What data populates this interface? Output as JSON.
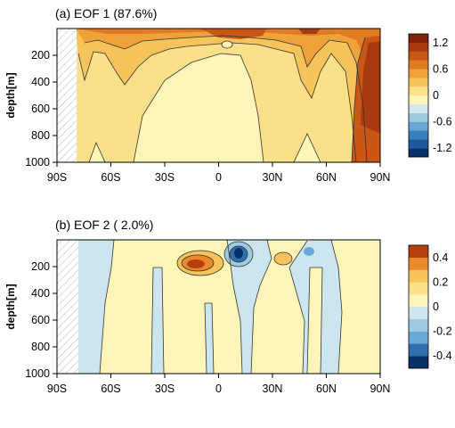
{
  "chart_data": [
    {
      "type": "heatmap",
      "title": "(a) EOF 1 (87.6%)",
      "ylabel": "depth[m]",
      "x_ticks": [
        "90S",
        "60S",
        "30S",
        "0",
        "30N",
        "60N",
        "90N"
      ],
      "x_values": [
        -90,
        -60,
        -30,
        0,
        30,
        60,
        90
      ],
      "y_ticks": [
        "200",
        "400",
        "600",
        "800",
        "1000"
      ],
      "y_values": [
        200,
        400,
        600,
        800,
        1000
      ],
      "xlim": [
        -90,
        90
      ],
      "ylim": [
        0,
        1000
      ],
      "y_inverted": true,
      "colorbar_ticks": [
        "1.2",
        "0.6",
        "0",
        "-0.6",
        "-1.2"
      ],
      "colorbar_levels": [
        -1.4,
        -1.2,
        -1.0,
        -0.8,
        -0.6,
        -0.4,
        -0.2,
        0,
        0.2,
        0.4,
        0.6,
        0.8,
        1.0,
        1.2,
        1.4
      ],
      "colors": [
        "#08306b",
        "#1f5aa0",
        "#3a7fbd",
        "#69a6d1",
        "#9ecae1",
        "#d2e8f0",
        "#fff5b8",
        "#fbe08a",
        "#f7c45c",
        "#f0a23a",
        "#e07b22",
        "#c95816",
        "#a83a0d",
        "#7f2208"
      ],
      "land_mask": "latitudes south of ~78S hatched",
      "field_description_points": [
        {
          "lat": -70,
          "depth": 300,
          "value": 0.5
        },
        {
          "lat": -60,
          "depth": 100,
          "value": 0.8
        },
        {
          "lat": -45,
          "depth": 300,
          "value": 0.5
        },
        {
          "lat": -20,
          "depth": 600,
          "value": 0.1
        },
        {
          "lat": 10,
          "depth": 100,
          "value": 0.9
        },
        {
          "lat": 45,
          "depth": 250,
          "value": 0.8
        },
        {
          "lat": 60,
          "depth": 600,
          "value": 0.5
        },
        {
          "lat": 85,
          "depth": 400,
          "value": 1.3
        }
      ]
    },
    {
      "type": "heatmap",
      "title": "(b) EOF 2 ( 2.0%)",
      "ylabel": "depth[m]",
      "x_ticks": [
        "90S",
        "60S",
        "30S",
        "0",
        "30N",
        "60N",
        "90N"
      ],
      "x_values": [
        -90,
        -60,
        -30,
        0,
        30,
        60,
        90
      ],
      "y_ticks": [
        "200",
        "400",
        "600",
        "800",
        "1000"
      ],
      "y_values": [
        200,
        400,
        600,
        800,
        1000
      ],
      "xlim": [
        -90,
        90
      ],
      "ylim": [
        0,
        1000
      ],
      "y_inverted": true,
      "colorbar_ticks": [
        "0.4",
        "0.2",
        "0",
        "-0.2",
        "-0.4"
      ],
      "colorbar_levels": [
        -0.5,
        -0.4,
        -0.3,
        -0.2,
        -0.1,
        0,
        0.1,
        0.2,
        0.3,
        0.4,
        0.5
      ],
      "colors": [
        "#08306b",
        "#2f6fad",
        "#6aaad6",
        "#9ecae1",
        "#cbe6ef",
        "#fff5b8",
        "#fbe08a",
        "#f7c45c",
        "#e88a2c",
        "#b5400e"
      ],
      "land_mask": "latitudes south of ~78S hatched",
      "field_description_points": [
        {
          "lat": -70,
          "depth": 500,
          "value": -0.05
        },
        {
          "lat": -45,
          "depth": 500,
          "value": 0.05
        },
        {
          "lat": -10,
          "depth": 150,
          "value": 0.35
        },
        {
          "lat": 10,
          "depth": 100,
          "value": -0.45
        },
        {
          "lat": 20,
          "depth": 600,
          "value": -0.05
        },
        {
          "lat": 50,
          "depth": 500,
          "value": -0.05
        },
        {
          "lat": 75,
          "depth": 400,
          "value": 0.05
        }
      ]
    }
  ]
}
